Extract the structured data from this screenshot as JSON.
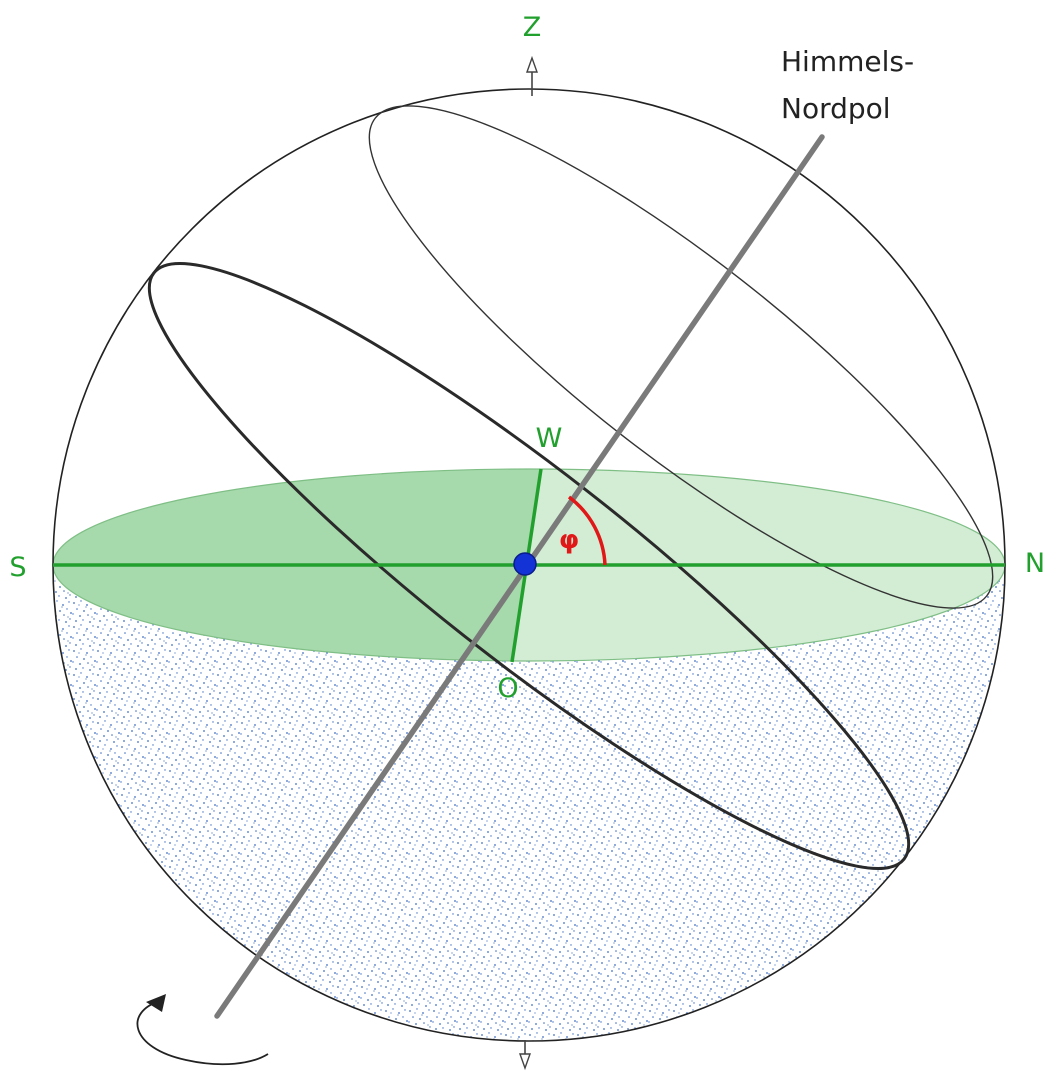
{
  "labels": {
    "zenith": "Z",
    "south": "S",
    "north": "N",
    "west": "W",
    "east": "O",
    "pole_line1": "Himmels-",
    "pole_line2": "Nordpol",
    "latitude": "φ"
  },
  "colors": {
    "horizon_fill_dark": "#a6d9ab",
    "horizon_fill_light": "#d3edd4",
    "horizon_line": "#22a02e",
    "below_horizon_dots": "#3f6fc4",
    "axis": "#7a7a7a",
    "angle": "#e01818",
    "observer": "#1433d6",
    "outline": "#222222"
  },
  "icons": [
    "zenith-arrow-icon",
    "nadir-arrow-icon",
    "rotation-arrow-icon",
    "observer-dot-icon"
  ]
}
